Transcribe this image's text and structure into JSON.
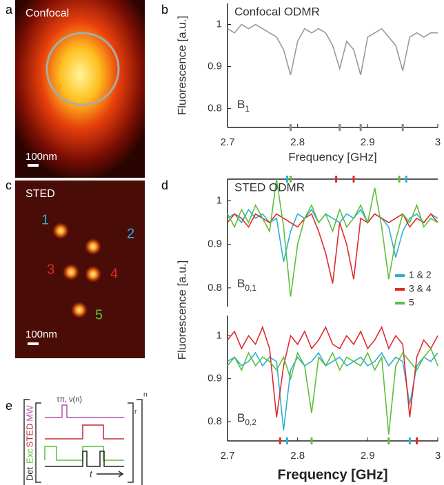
{
  "figure": {
    "panel_labels": [
      "a",
      "b",
      "c",
      "d",
      "e"
    ],
    "confocal": {
      "label": "Confocal",
      "scale": "100nm"
    },
    "sted": {
      "label": "STED",
      "scale": "100nm",
      "spots": [
        "1",
        "2",
        "3",
        "4",
        "5"
      ]
    },
    "pulse": {
      "channels": [
        "MW",
        "STED",
        "Exc",
        "Det"
      ],
      "pulse_label": "τπ, ν(n)",
      "time": "t",
      "repeat_inner": "r",
      "repeat_outer": "n"
    }
  },
  "chart_data": [
    {
      "type": "line",
      "title": "Confocal ODMR",
      "x_label": "Frequency [GHz]",
      "y_label": "Fluorescence [a.u.]",
      "annotation": {
        "base": "B",
        "sub": "1"
      },
      "x": [
        2.7,
        2.71,
        2.72,
        2.73,
        2.74,
        2.75,
        2.76,
        2.77,
        2.78,
        2.79,
        2.8,
        2.81,
        2.82,
        2.83,
        2.84,
        2.85,
        2.86,
        2.87,
        2.88,
        2.89,
        2.9,
        2.91,
        2.92,
        2.93,
        2.94,
        2.95,
        2.96,
        2.97,
        2.98,
        2.99,
        3.0
      ],
      "series": [
        {
          "color": "#999999",
          "values": [
            0.99,
            0.98,
            1.0,
            0.99,
            1.0,
            0.99,
            0.98,
            0.97,
            0.94,
            0.88,
            0.96,
            0.99,
            0.98,
            0.99,
            0.98,
            0.95,
            0.895,
            0.96,
            0.94,
            0.88,
            0.97,
            0.98,
            0.99,
            0.97,
            0.95,
            0.89,
            0.97,
            0.98,
            0.97,
            0.98,
            0.98
          ]
        }
      ],
      "xlim": [
        2.7,
        3.0
      ],
      "ylim": [
        0.755,
        1.05
      ],
      "xticks": [
        2.7,
        2.8,
        2.9,
        3
      ],
      "yticks": [
        0.8,
        0.9,
        1
      ],
      "markers": [
        {
          "x": 2.79,
          "color": "#888888"
        },
        {
          "x": 2.86,
          "color": "#888888"
        },
        {
          "x": 2.89,
          "color": "#888888"
        },
        {
          "x": 2.95,
          "color": "#888888"
        }
      ]
    },
    {
      "type": "line",
      "title": "STED ODMR",
      "y_label": "Fluorescence [a.u.]",
      "annotation": {
        "base": "B",
        "sub": "0,1"
      },
      "legend": "lower right",
      "x": [
        2.7,
        2.71,
        2.72,
        2.73,
        2.74,
        2.75,
        2.76,
        2.77,
        2.78,
        2.79,
        2.8,
        2.81,
        2.82,
        2.83,
        2.84,
        2.85,
        2.86,
        2.87,
        2.88,
        2.89,
        2.9,
        2.91,
        2.92,
        2.93,
        2.94,
        2.95,
        2.96,
        2.97,
        2.98,
        2.99,
        3.0
      ],
      "series": [
        {
          "name": "1 & 2",
          "color": "#2ab0d4",
          "values": [
            0.96,
            0.97,
            0.95,
            0.98,
            0.96,
            0.97,
            0.95,
            0.96,
            0.86,
            0.93,
            0.97,
            0.96,
            0.98,
            0.95,
            0.97,
            0.96,
            0.95,
            0.97,
            0.96,
            0.98,
            0.95,
            0.97,
            0.96,
            0.94,
            0.87,
            0.93,
            0.96,
            0.97,
            0.95,
            0.97,
            0.96
          ]
        },
        {
          "name": "3 & 4",
          "color": "#e02a2a",
          "values": [
            0.95,
            0.97,
            0.96,
            0.94,
            0.97,
            0.96,
            0.95,
            0.97,
            0.96,
            0.95,
            0.94,
            0.96,
            0.97,
            0.93,
            0.88,
            0.81,
            0.95,
            0.9,
            0.82,
            0.96,
            0.95,
            0.97,
            0.96,
            0.95,
            0.96,
            0.97,
            0.94,
            0.96,
            0.95,
            0.97,
            0.95
          ]
        },
        {
          "name": "5",
          "color": "#5cbf3a",
          "values": [
            0.97,
            0.94,
            0.98,
            0.95,
            0.99,
            0.96,
            0.93,
            1.05,
            0.94,
            0.78,
            0.9,
            0.96,
            0.99,
            0.95,
            0.97,
            0.93,
            0.98,
            0.94,
            0.96,
            0.99,
            0.95,
            1.03,
            0.94,
            0.82,
            0.91,
            0.97,
            0.95,
            0.99,
            0.94,
            0.96,
            0.95
          ]
        }
      ],
      "xlim": [
        2.7,
        3.0
      ],
      "ylim": [
        0.757,
        1.05
      ],
      "yticks": [
        0.8,
        0.9,
        1
      ],
      "markers": [
        {
          "x": 2.785,
          "color": "#2ab0d4"
        },
        {
          "x": 2.79,
          "color": "#5cbf3a"
        },
        {
          "x": 2.855,
          "color": "#e02a2a"
        },
        {
          "x": 2.88,
          "color": "#e02a2a"
        },
        {
          "x": 2.945,
          "color": "#5cbf3a"
        },
        {
          "x": 2.955,
          "color": "#2ab0d4"
        }
      ]
    },
    {
      "type": "line",
      "x_label": "Frequency [GHz]",
      "annotation": {
        "base": "B",
        "sub": "0,2"
      },
      "x": [
        2.7,
        2.71,
        2.72,
        2.73,
        2.74,
        2.75,
        2.76,
        2.77,
        2.78,
        2.79,
        2.8,
        2.81,
        2.82,
        2.83,
        2.84,
        2.85,
        2.86,
        2.87,
        2.88,
        2.89,
        2.9,
        2.91,
        2.92,
        2.93,
        2.94,
        2.95,
        2.96,
        2.97,
        2.98,
        2.99,
        3.0
      ],
      "series": [
        {
          "color": "#2ab0d4",
          "values": [
            0.94,
            0.95,
            0.93,
            0.94,
            0.96,
            0.93,
            0.95,
            0.94,
            0.78,
            0.92,
            0.95,
            0.93,
            0.94,
            0.96,
            0.93,
            0.94,
            0.95,
            0.93,
            0.94,
            0.95,
            0.93,
            0.94,
            0.96,
            0.93,
            0.95,
            0.94,
            0.84,
            0.93,
            0.95,
            0.94,
            0.96
          ]
        },
        {
          "color": "#e02a2a",
          "values": [
            0.99,
            1.01,
            0.97,
            1.0,
            0.98,
            1.02,
            0.97,
            0.81,
            0.93,
            1.0,
            0.98,
            1.01,
            0.97,
            0.99,
            1.02,
            0.98,
            0.97,
            1.0,
            0.98,
            1.01,
            0.97,
            0.99,
            1.02,
            0.97,
            1.0,
            0.98,
            0.81,
            0.95,
            0.99,
            0.97,
            1.0
          ]
        },
        {
          "color": "#5cbf3a",
          "values": [
            0.93,
            0.95,
            0.92,
            0.96,
            0.93,
            0.95,
            0.94,
            0.92,
            0.95,
            0.9,
            0.96,
            0.93,
            0.82,
            0.95,
            0.93,
            0.96,
            0.92,
            0.95,
            0.94,
            0.93,
            0.96,
            0.92,
            0.95,
            0.77,
            0.93,
            0.96,
            0.94,
            0.92,
            0.95,
            0.97,
            0.93
          ]
        }
      ],
      "xlim": [
        2.7,
        3.0
      ],
      "ylim": [
        0.755,
        1.047
      ],
      "xticks": [
        2.7,
        2.8,
        2.9,
        3
      ],
      "yticks": [
        0.8,
        0.9,
        1
      ],
      "markers": [
        {
          "x": 2.775,
          "color": "#e02a2a"
        },
        {
          "x": 2.785,
          "color": "#2ab0d4"
        },
        {
          "x": 2.82,
          "color": "#5cbf3a"
        },
        {
          "x": 2.93,
          "color": "#5cbf3a"
        },
        {
          "x": 2.96,
          "color": "#2ab0d4"
        },
        {
          "x": 2.97,
          "color": "#e02a2a"
        }
      ]
    }
  ]
}
